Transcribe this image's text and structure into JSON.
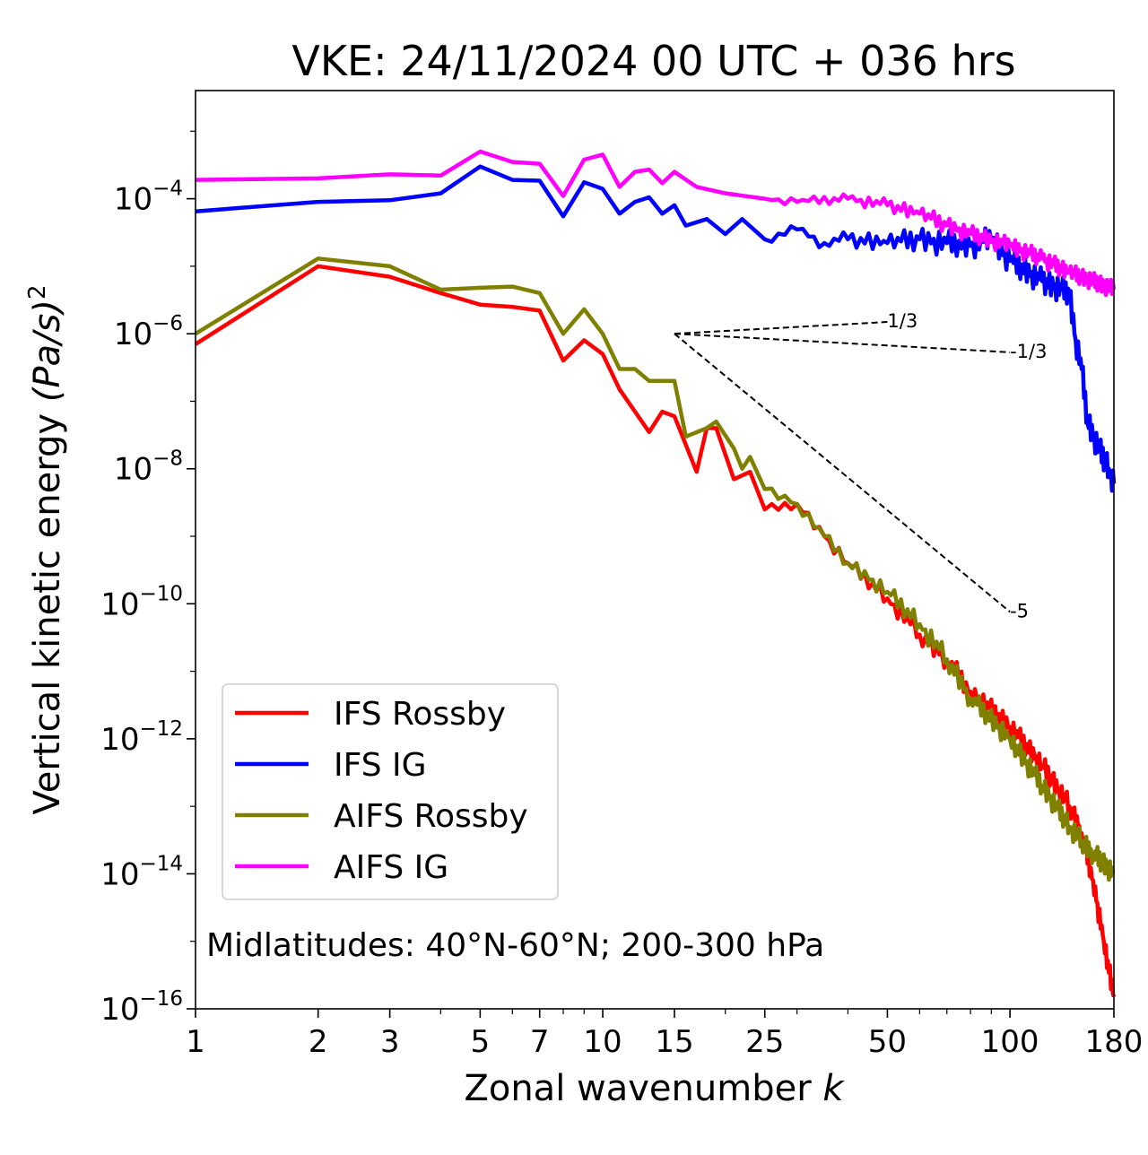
{
  "chart_data": {
    "type": "line",
    "title": "VKE: 24/11/2024 00 UTC + 036 hrs",
    "xlabel": "Zonal wavenumber",
    "xlabel_var": "k",
    "ylabel": "Vertical kinetic energy",
    "ylabel_math": "(Pa/s)",
    "ylabel_sup": "2",
    "x_scale": "log",
    "y_scale": "log",
    "xlim": [
      1,
      180
    ],
    "ylim": [
      1e-16,
      0.004
    ],
    "x_ticks": [
      1,
      2,
      3,
      5,
      7,
      10,
      15,
      25,
      50,
      100,
      180
    ],
    "x_tick_labels": [
      "1",
      "2",
      "3",
      "5",
      "7",
      "10",
      "15",
      "25",
      "50",
      "100",
      "180"
    ],
    "y_ticks": [
      {
        "value": 0.0001,
        "base": "10",
        "exp": "−4"
      },
      {
        "value": 1e-06,
        "base": "10",
        "exp": "−6"
      },
      {
        "value": 1e-08,
        "base": "10",
        "exp": "−8"
      },
      {
        "value": 1e-10,
        "base": "10",
        "exp": "−10"
      },
      {
        "value": 1e-12,
        "base": "10",
        "exp": "−12"
      },
      {
        "value": 1e-14,
        "base": "10",
        "exp": "−14"
      },
      {
        "value": 1e-16,
        "base": "10",
        "exp": "−16"
      }
    ],
    "grid": false,
    "legend_position": "lower-left",
    "annotation": "Midlatitudes: 40°N-60°N; 200-300 hPa",
    "reference_slopes": [
      {
        "label": "1/3",
        "slope": 0.3333,
        "x0": 15,
        "y0": 1e-06,
        "x1": 50
      },
      {
        "label": "-1/3",
        "slope": -0.3333,
        "x0": 15,
        "y0": 1e-06,
        "x1": 100
      },
      {
        "label": "-5",
        "slope": -5,
        "x0": 15,
        "y0": 1e-06,
        "x1": 100
      }
    ],
    "series": [
      {
        "name": "IFS Rossby",
        "color": "#ff0000",
        "anchors": [
          [
            1,
            7e-07
          ],
          [
            2,
            1e-05
          ],
          [
            3,
            7e-06
          ],
          [
            4,
            4e-06
          ],
          [
            5,
            2.7e-06
          ],
          [
            6,
            2.5e-06
          ],
          [
            7,
            2.2e-06
          ],
          [
            8,
            4e-07
          ],
          [
            9,
            8e-07
          ],
          [
            10,
            5e-07
          ],
          [
            11,
            1.5e-07
          ],
          [
            13,
            3.5e-08
          ],
          [
            14,
            7e-08
          ],
          [
            15,
            6e-08
          ],
          [
            17,
            9e-09
          ],
          [
            18,
            4e-08
          ],
          [
            19,
            4e-08
          ],
          [
            21,
            7e-09
          ],
          [
            23,
            9e-09
          ],
          [
            25,
            2.5e-09
          ],
          [
            30,
            3e-09
          ],
          [
            35,
            1e-09
          ],
          [
            40,
            4e-10
          ],
          [
            50,
            1.2e-10
          ],
          [
            60,
            3.5e-11
          ],
          [
            70,
            1.5e-11
          ],
          [
            80,
            5e-12
          ],
          [
            100,
            1.5e-12
          ],
          [
            120,
            4e-13
          ],
          [
            140,
            1e-13
          ],
          [
            150,
            4e-14
          ],
          [
            160,
            8e-15
          ],
          [
            170,
            1e-15
          ],
          [
            180,
            1.5e-16
          ]
        ]
      },
      {
        "name": "IFS IG",
        "color": "#0000ff",
        "anchors": [
          [
            1,
            6.5e-05
          ],
          [
            2,
            9e-05
          ],
          [
            3,
            9.5e-05
          ],
          [
            4,
            0.00012
          ],
          [
            5,
            0.0003
          ],
          [
            6,
            0.00019
          ],
          [
            7,
            0.000185
          ],
          [
            8,
            5.5e-05
          ],
          [
            9,
            0.000175
          ],
          [
            10,
            0.00014
          ],
          [
            11,
            6e-05
          ],
          [
            12,
            9e-05
          ],
          [
            13,
            0.000105
          ],
          [
            14,
            6e-05
          ],
          [
            15,
            8e-05
          ],
          [
            16,
            4e-05
          ],
          [
            18,
            5e-05
          ],
          [
            20,
            3e-05
          ],
          [
            22,
            5e-05
          ],
          [
            25,
            2.5e-05
          ],
          [
            30,
            3.5e-05
          ],
          [
            35,
            2.2e-05
          ],
          [
            40,
            2.5e-05
          ],
          [
            50,
            2.2e-05
          ],
          [
            60,
            2.5e-05
          ],
          [
            70,
            2.2e-05
          ],
          [
            80,
            2e-05
          ],
          [
            90,
            2.5e-05
          ],
          [
            100,
            1.2e-05
          ],
          [
            120,
            6e-06
          ],
          [
            140,
            4e-06
          ],
          [
            145,
            8e-07
          ],
          [
            150,
            3e-07
          ],
          [
            155,
            5e-08
          ],
          [
            165,
            2e-08
          ],
          [
            175,
            1e-08
          ],
          [
            180,
            6e-09
          ]
        ]
      },
      {
        "name": "AIFS Rossby",
        "color": "#808000",
        "anchors": [
          [
            1,
            1e-06
          ],
          [
            2,
            1.3e-05
          ],
          [
            3,
            1e-05
          ],
          [
            4,
            4.5e-06
          ],
          [
            5,
            4.8e-06
          ],
          [
            6,
            5e-06
          ],
          [
            7,
            4e-06
          ],
          [
            8,
            1e-06
          ],
          [
            9,
            2.3e-06
          ],
          [
            10,
            1e-06
          ],
          [
            11,
            3e-07
          ],
          [
            12,
            3e-07
          ],
          [
            13,
            2e-07
          ],
          [
            15,
            2e-07
          ],
          [
            16,
            3e-08
          ],
          [
            18,
            4e-08
          ],
          [
            19,
            5e-08
          ],
          [
            21,
            2e-08
          ],
          [
            22,
            1e-08
          ],
          [
            23,
            1.5e-08
          ],
          [
            25,
            5e-09
          ],
          [
            30,
            3e-09
          ],
          [
            35,
            1e-09
          ],
          [
            40,
            4e-10
          ],
          [
            50,
            1.5e-10
          ],
          [
            60,
            5e-11
          ],
          [
            70,
            1.5e-11
          ],
          [
            80,
            4e-12
          ],
          [
            100,
            1e-12
          ],
          [
            120,
            2e-13
          ],
          [
            140,
            5e-14
          ],
          [
            150,
            3e-14
          ],
          [
            160,
            2e-14
          ],
          [
            180,
            1e-14
          ]
        ]
      },
      {
        "name": "AIFS IG",
        "color": "#ff00ff",
        "anchors": [
          [
            1,
            0.00019
          ],
          [
            2,
            0.0002
          ],
          [
            3,
            0.00023
          ],
          [
            4,
            0.00022
          ],
          [
            5,
            0.0005
          ],
          [
            6,
            0.00035
          ],
          [
            7,
            0.00033
          ],
          [
            8,
            0.00011
          ],
          [
            9,
            0.00038
          ],
          [
            10,
            0.00045
          ],
          [
            11,
            0.00015
          ],
          [
            12,
            0.00025
          ],
          [
            13,
            0.00027
          ],
          [
            14,
            0.00017
          ],
          [
            15,
            0.00025
          ],
          [
            17,
            0.00015
          ],
          [
            20,
            0.00012
          ],
          [
            25,
            0.0001
          ],
          [
            30,
            9e-05
          ],
          [
            40,
            0.0001
          ],
          [
            50,
            8e-05
          ],
          [
            60,
            6e-05
          ],
          [
            70,
            4e-05
          ],
          [
            80,
            3e-05
          ],
          [
            100,
            2e-05
          ],
          [
            120,
            1.3e-05
          ],
          [
            140,
            8e-06
          ],
          [
            160,
            6e-06
          ],
          [
            180,
            4.5e-06
          ]
        ]
      }
    ]
  }
}
